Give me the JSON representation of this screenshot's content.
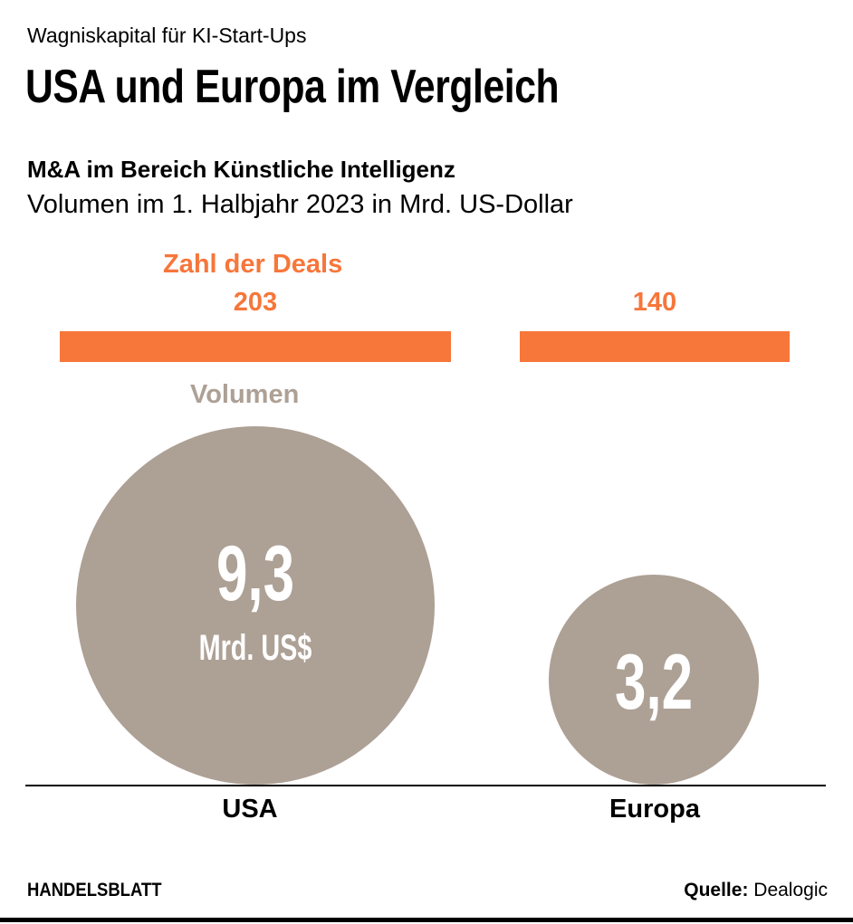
{
  "header": {
    "kicker": "Wagniskapital für KI-Start-Ups",
    "title": "USA und Europa im Vergleich",
    "subtitle": "M&A im Bereich Künstliche Intelligenz",
    "unit": "Volumen im 1. Halbjahr 2023 in Mrd. US-Dollar"
  },
  "chart_data": {
    "type": "bar",
    "categories": [
      "USA",
      "Europa"
    ],
    "series": [
      {
        "name": "Zahl der Deals",
        "values": [
          203,
          140
        ],
        "labels": [
          "203",
          "140"
        ],
        "color": "#F7763A"
      },
      {
        "name": "Volumen",
        "values": [
          9.3,
          3.2
        ],
        "labels": [
          "9,3",
          "3,2"
        ],
        "unit_label": "Mrd. US$",
        "color": "#ADA095"
      }
    ]
  },
  "footer": {
    "brand": "HANDELSBLATT",
    "source_label": "Quelle:",
    "source": "Dealogic"
  }
}
